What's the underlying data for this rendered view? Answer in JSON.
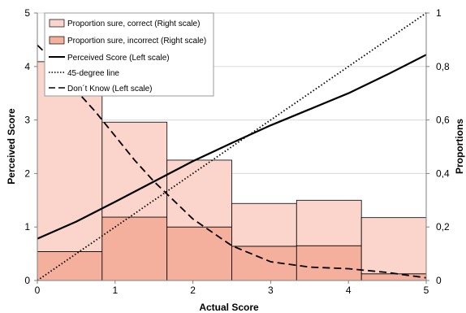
{
  "chart_data": {
    "type": "bar",
    "title": "",
    "xlabel": "Actual Score",
    "ylabel_left": "Perceived Score",
    "ylabel_right": "Proportions",
    "xlim": [
      0,
      5
    ],
    "ylim_left": [
      0,
      5
    ],
    "ylim_right": [
      0,
      1
    ],
    "x_ticks": [
      "0",
      "1",
      "2",
      "3",
      "4",
      "5"
    ],
    "y_left_ticks": [
      "0",
      "1",
      "2",
      "3",
      "4",
      "5"
    ],
    "y_right_ticks": [
      "0",
      "0,2",
      "0,4",
      "0,6",
      "0,8",
      "1"
    ],
    "grid": "horizontal",
    "legend_position": "top-left",
    "bins": [
      {
        "x0": 0.0,
        "x1": 0.833
      },
      {
        "x0": 0.833,
        "x1": 1.667
      },
      {
        "x0": 1.667,
        "x1": 2.5
      },
      {
        "x0": 2.5,
        "x1": 3.333
      },
      {
        "x0": 3.333,
        "x1": 4.167
      },
      {
        "x0": 4.167,
        "x1": 5.0
      }
    ],
    "series": [
      {
        "name": "Proportion sure, correct (Right scale)",
        "kind": "bar",
        "axis": "right",
        "color": "#fbd5cb",
        "values": [
          0.71,
          0.355,
          0.25,
          0.16,
          0.17,
          0.21
        ]
      },
      {
        "name": "Proportion sure, incorrect (Right scale)",
        "kind": "bar",
        "axis": "right",
        "color": "#f4b09c",
        "values": [
          0.108,
          0.237,
          0.2,
          0.128,
          0.13,
          0.025
        ]
      },
      {
        "name": "Perceived Score (Left scale)",
        "kind": "line",
        "style": "solid",
        "axis": "left",
        "x": [
          0,
          0.5,
          1,
          1.5,
          2,
          2.5,
          3,
          3.5,
          4,
          4.5,
          5
        ],
        "y": [
          0.78,
          1.1,
          1.47,
          1.85,
          2.23,
          2.57,
          2.9,
          3.2,
          3.5,
          3.85,
          4.22
        ]
      },
      {
        "name": "45-degree line",
        "kind": "line",
        "style": "dotted",
        "axis": "left",
        "x": [
          0,
          5
        ],
        "y": [
          0,
          5
        ]
      },
      {
        "name": "Don´t Know (Left scale)",
        "kind": "line",
        "style": "dashed",
        "axis": "left",
        "x": [
          0,
          0.25,
          0.5,
          0.75,
          1,
          1.25,
          1.5,
          2,
          2.5,
          3,
          3.5,
          4,
          4.5,
          5
        ],
        "y": [
          4.4,
          4.05,
          3.55,
          3.15,
          2.7,
          2.25,
          1.85,
          1.15,
          0.65,
          0.35,
          0.25,
          0.22,
          0.15,
          0.05
        ]
      }
    ]
  }
}
